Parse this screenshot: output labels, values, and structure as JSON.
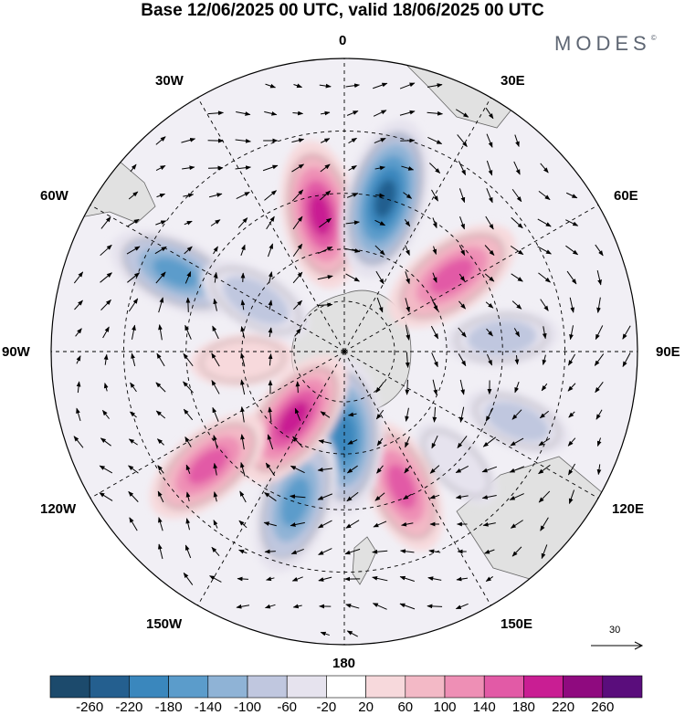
{
  "title": "Base 12/06/2025 00 UTC, valid 18/06/2025 00 UTC",
  "brand": {
    "name": "MODES",
    "mark": "©"
  },
  "longitude_labels": {
    "north": "0",
    "east_30": "30E",
    "east_60": "60E",
    "east_90": "90E",
    "east_120": "120E",
    "east_150": "150E",
    "south": "180",
    "west_150": "150W",
    "west_120": "120W",
    "west_90": "90W",
    "west_60": "60W",
    "west_30": "30W"
  },
  "wind_reference": {
    "label": "30",
    "value": 30
  },
  "colorbar": {
    "ticks": [
      "-260",
      "-220",
      "-180",
      "-140",
      "-100",
      "-60",
      "-20",
      "20",
      "60",
      "100",
      "140",
      "180",
      "220",
      "260"
    ],
    "colors": [
      "#1c4a6c",
      "#245f8f",
      "#3a87bd",
      "#5b9ccb",
      "#8fb3d6",
      "#c0c7df",
      "#e6e3ee",
      "#ffffff",
      "#f7d9dc",
      "#f3b9c6",
      "#ee8fb5",
      "#e25aa6",
      "#c91e93",
      "#8f0a7f",
      "#5a0d7c"
    ]
  },
  "map": {
    "land_color": "#dedede",
    "anomaly_centers": [
      {
        "lon": -10,
        "lat": -50,
        "value": 200
      },
      {
        "lon": 15,
        "lat": -45,
        "value": -240
      },
      {
        "lon": 55,
        "lat": -52,
        "value": 190
      },
      {
        "lon": 85,
        "lat": -45,
        "value": -90
      },
      {
        "lon": 112,
        "lat": -38,
        "value": -80
      },
      {
        "lon": 135,
        "lat": -45,
        "value": -60
      },
      {
        "lon": 157,
        "lat": -48,
        "value": 160
      },
      {
        "lon": 180,
        "lat": -65,
        "value": -220
      },
      {
        "lon": -162,
        "lat": -45,
        "value": -190
      },
      {
        "lon": -143,
        "lat": -65,
        "value": 200
      },
      {
        "lon": -130,
        "lat": -40,
        "value": 170
      },
      {
        "lon": -95,
        "lat": -60,
        "value": 60
      },
      {
        "lon": -65,
        "lat": -38,
        "value": -170
      },
      {
        "lon": -60,
        "lat": -60,
        "value": -110
      }
    ]
  }
}
